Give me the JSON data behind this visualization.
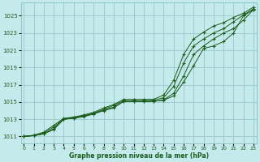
{
  "xlabel": "Graphe pression niveau de la mer (hPa)",
  "background_color": "#c5eaec",
  "plot_bg_color": "#c5eaec",
  "grid_color": "#9dcdd0",
  "line_color": "#1a5c1a",
  "x_ticks": [
    0,
    1,
    2,
    3,
    4,
    5,
    6,
    7,
    8,
    9,
    10,
    11,
    12,
    13,
    14,
    15,
    16,
    17,
    18,
    19,
    20,
    21,
    22,
    23
  ],
  "y_ticks": [
    1011,
    1013,
    1015,
    1017,
    1019,
    1021,
    1023,
    1025
  ],
  "xlim": [
    -0.3,
    23.3
  ],
  "ylim": [
    1010.2,
    1026.5
  ],
  "series": [
    {
      "x": [
        0,
        1,
        2,
        3,
        4,
        5,
        6,
        7,
        8,
        9,
        10,
        11,
        12,
        13,
        14,
        15,
        16,
        17,
        18,
        19,
        20,
        21,
        22,
        23
      ],
      "y": [
        1011.0,
        1011.1,
        1011.3,
        1011.8,
        1013.0,
        1013.1,
        1013.3,
        1013.6,
        1014.0,
        1014.3,
        1015.1,
        1015.1,
        1015.1,
        1015.1,
        1015.2,
        1015.7,
        1017.3,
        1019.2,
        1021.2,
        1021.5,
        1022.0,
        1023.0,
        1025.0,
        1025.7
      ],
      "style": "solid",
      "marker": "+"
    },
    {
      "x": [
        0,
        1,
        2,
        3,
        4,
        5,
        6,
        7,
        8,
        9,
        10,
        11,
        12,
        13,
        14,
        15,
        16,
        17,
        18,
        19,
        20,
        21,
        22,
        23
      ],
      "y": [
        1011.0,
        1011.1,
        1011.3,
        1011.9,
        1013.0,
        1013.15,
        1013.35,
        1013.65,
        1014.05,
        1014.4,
        1015.05,
        1015.05,
        1015.05,
        1015.05,
        1015.25,
        1016.0,
        1018.0,
        1020.5,
        1021.5,
        1022.3,
        1023.0,
        1023.5,
        1024.5,
        1025.7
      ],
      "style": "solid",
      "marker": "+"
    },
    {
      "x": [
        0,
        1,
        2,
        3,
        4,
        5,
        6,
        7,
        8,
        9,
        10,
        11,
        12,
        13,
        14,
        15,
        16,
        17,
        18,
        19,
        20,
        21,
        22,
        23
      ],
      "y": [
        1011.0,
        1011.1,
        1011.4,
        1012.1,
        1013.05,
        1013.2,
        1013.4,
        1013.7,
        1014.15,
        1014.6,
        1015.15,
        1015.15,
        1015.15,
        1015.2,
        1015.5,
        1016.8,
        1019.5,
        1021.5,
        1022.3,
        1023.0,
        1023.5,
        1024.3,
        1025.1,
        1025.8
      ],
      "style": "solid",
      "marker": "+"
    },
    {
      "x": [
        0,
        1,
        2,
        3,
        4,
        5,
        6,
        7,
        8,
        9,
        10,
        11,
        12,
        13,
        14,
        15,
        16,
        17,
        18,
        19,
        20,
        21,
        22,
        23
      ],
      "y": [
        1011.0,
        1011.15,
        1011.5,
        1012.3,
        1013.1,
        1013.25,
        1013.5,
        1013.8,
        1014.3,
        1014.7,
        1015.3,
        1015.3,
        1015.3,
        1015.3,
        1015.8,
        1017.5,
        1020.5,
        1022.3,
        1023.1,
        1023.8,
        1024.2,
        1024.8,
        1025.3,
        1026.0
      ],
      "style": "solid",
      "marker": "+"
    }
  ]
}
